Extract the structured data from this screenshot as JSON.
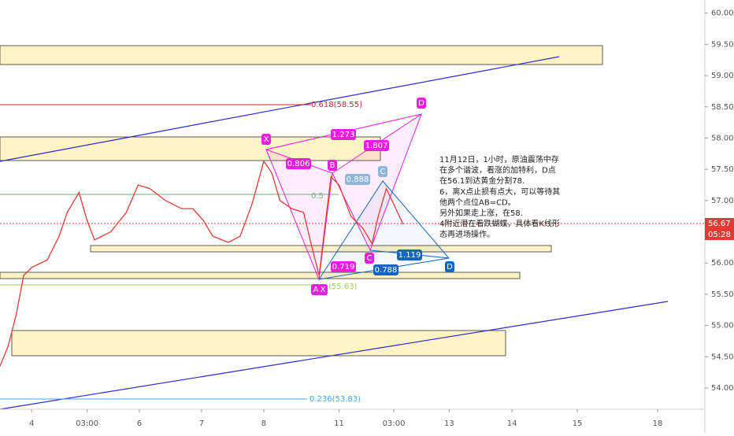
{
  "chart_data": {
    "type": "line",
    "x": [
      -0.51,
      -0.38,
      -0.25,
      -0.13,
      0,
      0.25,
      0.44,
      0.57,
      0.76,
      0.89,
      1.01,
      1.27,
      1.52,
      1.71,
      1.9,
      2.15,
      2.41,
      2.59,
      2.76,
      2.91,
      3.16,
      3.35,
      3.54,
      3.73,
      3.86,
      3.99,
      4.18,
      4.37,
      4.49,
      4.62,
      4.71,
      4.81,
      4.94,
      5.13,
      5.32,
      5.47,
      5.57,
      5.7,
      5.82,
      5.97
    ],
    "series": [
      {
        "color": "#e53935",
        "values": [
          54.35,
          54.67,
          55.17,
          55.8,
          55.93,
          56.05,
          56.43,
          56.81,
          57.13,
          56.68,
          56.37,
          56.5,
          56.81,
          57.25,
          57.19,
          57.0,
          56.87,
          56.87,
          56.68,
          56.43,
          56.33,
          56.43,
          56.94,
          57.63,
          57.44,
          57.0,
          56.87,
          56.81,
          56.31,
          55.8,
          56.56,
          57.38,
          57.25,
          56.75,
          56.56,
          56.31,
          56.75,
          57.19,
          56.94,
          56.62
        ]
      }
    ],
    "xlim": [
      -0.51,
      10.82
    ],
    "ylim": [
      53.66,
      60.21
    ],
    "xticks": [
      {
        "value": 0,
        "label": "4"
      },
      {
        "value": 0.89,
        "label": "03:00"
      },
      {
        "value": 1.73,
        "label": "6"
      },
      {
        "value": 2.73,
        "label": "7"
      },
      {
        "value": 3.73,
        "label": "8"
      },
      {
        "value": 4.94,
        "label": "11"
      },
      {
        "value": 5.82,
        "label": "03:00"
      },
      {
        "value": 6.71,
        "label": "13"
      },
      {
        "value": 7.72,
        "label": "14"
      },
      {
        "value": 8.77,
        "label": "15"
      },
      {
        "value": 10.06,
        "label": "18"
      }
    ],
    "yticks": [
      {
        "value": 54,
        "label": "54.00"
      },
      {
        "value": 54.5,
        "label": "54.50"
      },
      {
        "value": 55,
        "label": "55.00"
      },
      {
        "value": 55.5,
        "label": "55.50"
      },
      {
        "value": 56,
        "label": "56.00"
      },
      {
        "value": 56.5,
        "label": "56.50"
      },
      {
        "value": 57,
        "label": "57.00"
      },
      {
        "value": 57.5,
        "label": "57.50"
      },
      {
        "value": 58,
        "label": "58.00"
      },
      {
        "value": 58.5,
        "label": "58.50"
      },
      {
        "value": 59,
        "label": "59.00"
      },
      {
        "value": 59.5,
        "label": "59.50"
      },
      {
        "value": 60,
        "label": "60.00"
      }
    ],
    "fib_labels": [
      "0.618(58.55)",
      "0.5",
      "(55.63)",
      "0.236(53.83)"
    ],
    "pattern_points": [
      "X",
      "B",
      "C",
      "D",
      "A",
      "X",
      "C",
      "D"
    ],
    "ratios": [
      "1.273",
      "1.807",
      "0.806",
      "0.888",
      "0.719",
      "1.119",
      "0.788"
    ],
    "price_tag": "56.67",
    "time_tag": "05:28",
    "note": [
      "11月12日，1小时，原油震荡中存",
      "在多个谐波，看涨的加特利，D点",
      "在56.1到达黄金分割78.",
      "6，离X点止损有点大，可以等待其",
      "他两个点位AB=CD。",
      "另外如果走上涨，在58.",
      "4附近潜在看跌蝴蝶，具体看K线形",
      "态再进场操作。"
    ]
  }
}
